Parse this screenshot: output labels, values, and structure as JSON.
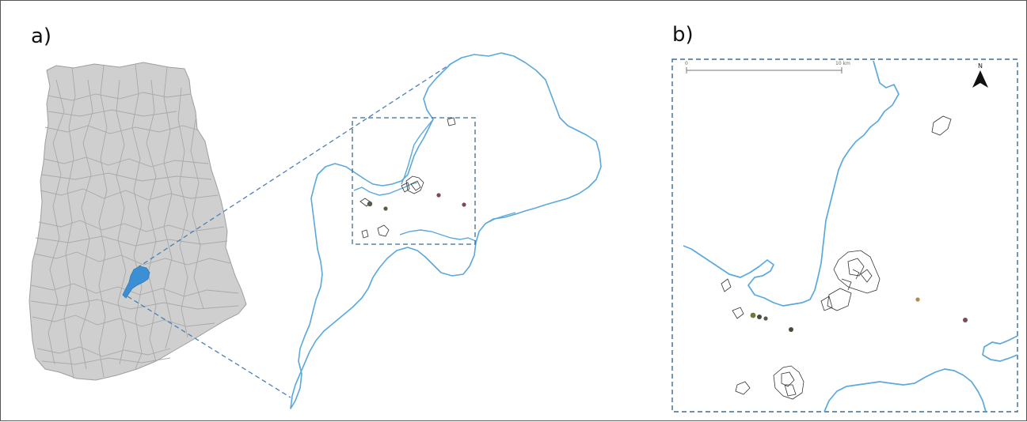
{
  "figure": {
    "panel_a_label": "a)",
    "panel_b_label": "b)"
  },
  "map_b": {
    "scale_start": "0",
    "scale_end": "10 km",
    "north_label": "N"
  },
  "colors": {
    "district_fill": "#cfcfcf",
    "district_border": "#a9a9a9",
    "study_area_fill": "#3c8fd4",
    "boundary_line": "#5aa8dc",
    "dashed_frame": "#3d6a96",
    "parcel_outline": "#333333"
  }
}
